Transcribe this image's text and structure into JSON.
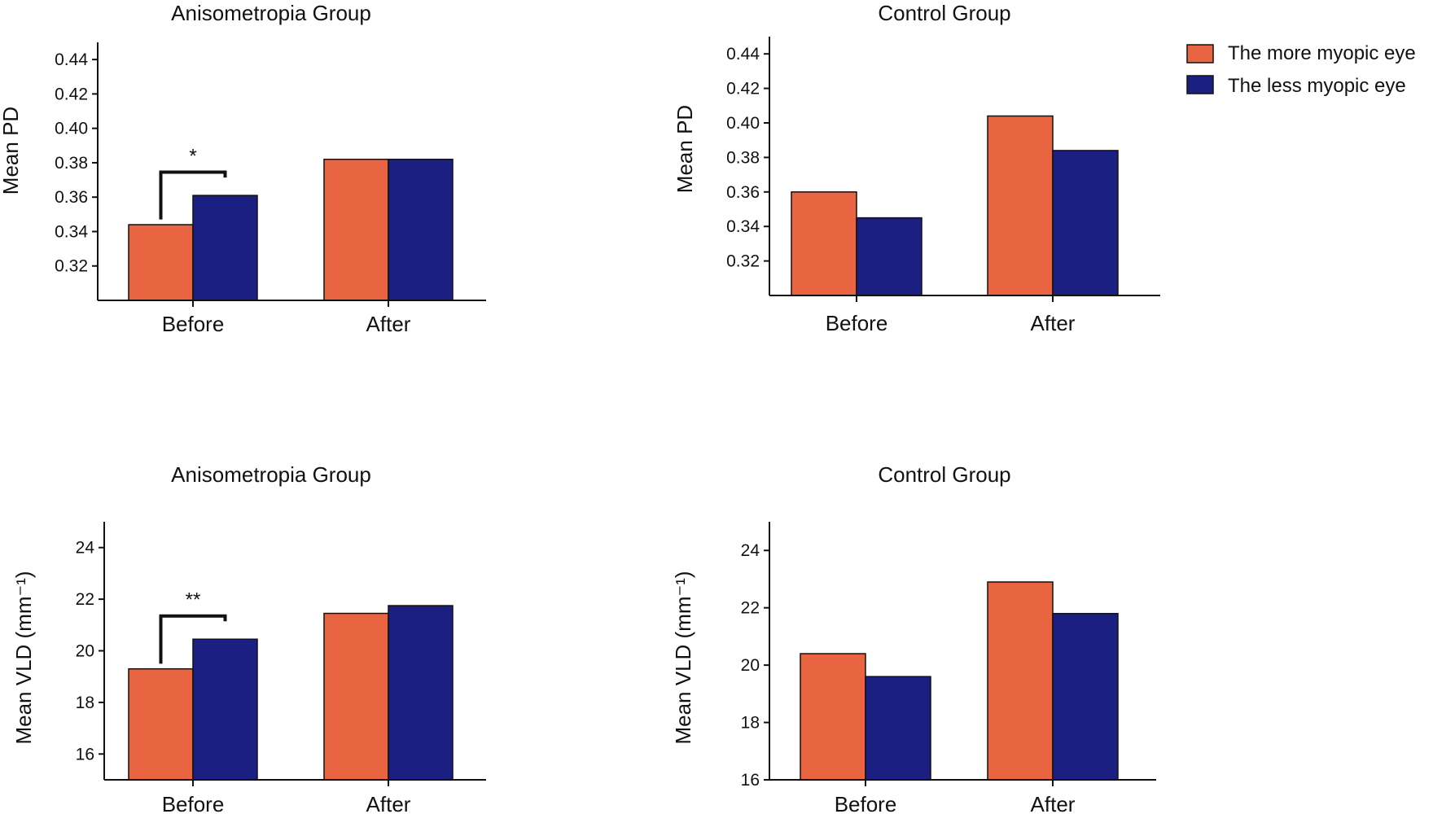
{
  "legend": {
    "placement": "top-right",
    "items": [
      {
        "label": "The more myopic eye",
        "color": "#E96440"
      },
      {
        "label": "The less myopic eye",
        "color": "#1C1F82"
      }
    ]
  },
  "chart_data": [
    {
      "type": "bar",
      "title": "Anisometropia Group",
      "ylabel": "Mean PD",
      "categories": [
        "Before",
        "After"
      ],
      "ylim": [
        0.3,
        0.45
      ],
      "yticks": [
        0.32,
        0.34,
        0.36,
        0.38,
        0.4,
        0.42,
        0.44
      ],
      "tick_format": "2",
      "series": [
        {
          "name": "The more myopic eye",
          "values": [
            0.344,
            0.382
          ],
          "color": "#E96440"
        },
        {
          "name": "The less myopic eye",
          "values": [
            0.361,
            0.382
          ],
          "color": "#1C1F82"
        }
      ],
      "annotations": [
        {
          "text": "*",
          "category": "Before"
        }
      ]
    },
    {
      "type": "bar",
      "title": "Control Group",
      "ylabel": "Mean PD",
      "categories": [
        "Before",
        "After"
      ],
      "ylim": [
        0.3,
        0.45
      ],
      "yticks": [
        0.32,
        0.34,
        0.36,
        0.38,
        0.4,
        0.42,
        0.44
      ],
      "tick_format": "2",
      "series": [
        {
          "name": "The more myopic eye",
          "values": [
            0.36,
            0.404
          ],
          "color": "#E96440"
        },
        {
          "name": "The less myopic eye",
          "values": [
            0.345,
            0.384
          ],
          "color": "#1C1F82"
        }
      ],
      "annotations": []
    },
    {
      "type": "bar",
      "title": "Anisometropia Group",
      "ylabel": "Mean VLD (mm⁻¹)",
      "categories": [
        "Before",
        "After"
      ],
      "ylim": [
        15,
        25
      ],
      "yticks": [
        16,
        18,
        20,
        22,
        24
      ],
      "tick_format": "0",
      "series": [
        {
          "name": "The more myopic eye",
          "values": [
            19.3,
            21.45
          ],
          "color": "#E96440"
        },
        {
          "name": "The less myopic eye",
          "values": [
            20.45,
            21.75
          ],
          "color": "#1C1F82"
        }
      ],
      "annotations": [
        {
          "text": "**",
          "category": "Before"
        }
      ]
    },
    {
      "type": "bar",
      "title": "Control Group",
      "ylabel": "Mean VLD (mm⁻¹)",
      "categories": [
        "Before",
        "After"
      ],
      "ylim": [
        16,
        25
      ],
      "yticks": [
        16,
        18,
        20,
        22,
        24
      ],
      "tick_format": "0",
      "series": [
        {
          "name": "The more myopic eye",
          "values": [
            20.4,
            22.9
          ],
          "color": "#E96440"
        },
        {
          "name": "The less myopic eye",
          "values": [
            19.6,
            21.8
          ],
          "color": "#1C1F82"
        }
      ],
      "annotations": []
    }
  ]
}
